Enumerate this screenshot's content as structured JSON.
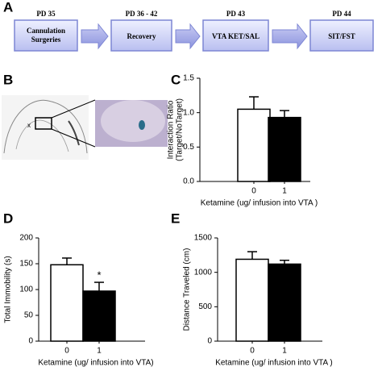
{
  "panel_labels": [
    "A",
    "B",
    "C",
    "D",
    "E"
  ],
  "timeline": [
    {
      "day": "PD 35",
      "label": "Cannulation Surgeries"
    },
    {
      "day": "PD 36 - 42",
      "label": "Recovery"
    },
    {
      "day": "PD 43",
      "label": "VTA KET/SAL"
    },
    {
      "day": "PD 44",
      "label": "SIT/FST"
    }
  ],
  "chart_data": [
    {
      "type": "bar",
      "ylabel": [
        "Interaction  Ratio",
        "(Target/NoTarget)"
      ],
      "xlabel": "Ketamine (ug/ infusion into VTA )",
      "categories": [
        "0",
        "1"
      ],
      "values": [
        1.05,
        0.93
      ],
      "errors": [
        0.18,
        0.1
      ],
      "colors": [
        "#ffffff",
        "#000000"
      ],
      "ylim": [
        0,
        1.5
      ],
      "yticks": [
        {
          "value": 0,
          "label": "0.0"
        },
        {
          "value": 0.5,
          "label": "0.5"
        },
        {
          "value": 1,
          "label": "1.0"
        },
        {
          "value": 1.5,
          "label": "1.5"
        }
      ]
    },
    {
      "type": "bar",
      "ylabel": "Total Immobility (s)",
      "xlabel": "Ketamine (ug/ infusion into VTA)",
      "categories": [
        "0",
        "1"
      ],
      "values": [
        148,
        97
      ],
      "errors": [
        13,
        17
      ],
      "colors": [
        "#ffffff",
        "#000000"
      ],
      "ylim": [
        0,
        200
      ],
      "yticks": [
        0,
        50,
        100,
        150,
        200
      ],
      "annotations": [
        {
          "text": "*",
          "category": "1"
        }
      ]
    },
    {
      "type": "bar",
      "ylabel": "Distance Traveled (cm)",
      "xlabel": "Ketamine (ug/ infusion into VTA )",
      "categories": [
        "0",
        "1"
      ],
      "values": [
        1190,
        1120
      ],
      "errors": [
        110,
        55
      ],
      "colors": [
        "#ffffff",
        "#000000"
      ],
      "ylim": [
        0,
        1500
      ],
      "yticks": [
        0,
        500,
        1000,
        1500
      ]
    }
  ]
}
